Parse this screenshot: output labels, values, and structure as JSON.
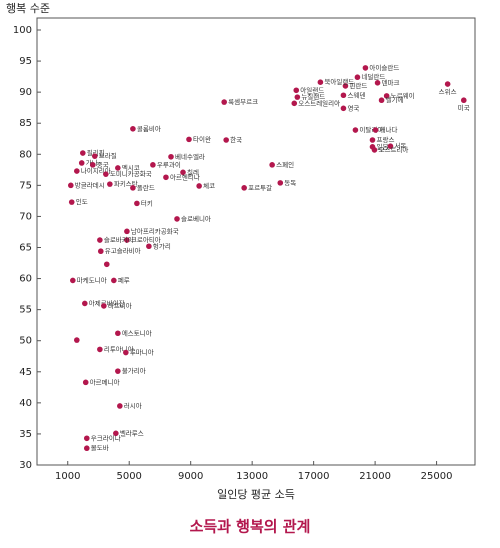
{
  "chart_data": {
    "type": "scatter",
    "title": "소득과 행복의 관계",
    "y_label": "행복 수준",
    "x_label": "일인당 평균 소득",
    "color": "#b3174d",
    "xlim": [
      -1000,
      27500
    ],
    "xticks": [
      1000,
      5000,
      9000,
      13000,
      17000,
      21000,
      25000
    ],
    "ylim": [
      30,
      100
    ],
    "yticks": [
      30,
      35,
      40,
      45,
      50,
      55,
      60,
      65,
      70,
      75,
      80,
      85,
      90,
      95,
      100
    ],
    "labels": [
      "스위스",
      "미국",
      "아이슬란드",
      "네덜란드",
      "덴마크",
      "노르웨이",
      "벨기에",
      "핀란드",
      "북아일랜드",
      "스웨덴",
      "아일랜드",
      "뉴질랜드",
      "오스트레일리아",
      "영국",
      "룩셈부르크",
      "이탈리아",
      "캐나다",
      "프랑스",
      "일본",
      "서독",
      "오스트리아",
      "스페인",
      "동독",
      "포르투갈",
      "한국",
      "타이완",
      "콜롬비아",
      "필리핀",
      "브라질",
      "가나",
      "중국",
      "나이지리아",
      "방글라데시",
      "인도",
      "파키스탄",
      "멕시코",
      "도미니카공화국",
      "우루과이",
      "베네수엘라",
      "칠레",
      "아르헨티나",
      "체코",
      "폴란드",
      "터키",
      "슬로베니아",
      "남아프리카공화국",
      "크로아티아",
      "헝가리",
      "유고슬라비아",
      "슬로바키아",
      null,
      "마케도니아",
      "페루",
      "아제르바이잔",
      "라트비아",
      "에스토니아",
      null,
      "리투아니아",
      "루마니아",
      "불가리아",
      "아르메니아",
      "러시아",
      "벨라루스",
      "우크라이나",
      "몰도바"
    ],
    "x": [
      25720,
      26770,
      20370,
      19850,
      21160,
      21750,
      21420,
      19070,
      17440,
      18940,
      15870,
      15940,
      15740,
      18940,
      11180,
      19720,
      21030,
      20830,
      20830,
      22000,
      20960,
      14300,
      14830,
      12480,
      11310,
      8890,
      5240,
      1980,
      2760,
      1910,
      2630,
      1590,
      1200,
      1260,
      3740,
      4260,
      3480,
      6540,
      7720,
      8500,
      7390,
      9550,
      5240,
      5500,
      8110,
      4850,
      4850,
      6280,
      3150,
      3090,
      3540,
      1330,
      4000,
      2110,
      3350,
      4260,
      1590,
      3090,
      4780,
      4260,
      2170,
      4390,
      4130,
      2240,
      2240
    ],
    "values": [
      91.3,
      88.7,
      93.9,
      92.4,
      91.5,
      89.4,
      88.7,
      91,
      91.6,
      89.5,
      90.3,
      89.2,
      88.2,
      87.4,
      88.4,
      83.9,
      83.9,
      82.3,
      81.2,
      81.3,
      80.7,
      78.3,
      75.4,
      74.6,
      82.3,
      82.4,
      84.1,
      80.2,
      79.7,
      78.6,
      78.3,
      77.3,
      75,
      72.3,
      75.2,
      77.8,
      76.8,
      78.3,
      79.6,
      77.1,
      76.3,
      74.9,
      74.6,
      72.1,
      69.6,
      67.6,
      66.2,
      65.2,
      64.4,
      66.2,
      62.3,
      59.7,
      59.7,
      56,
      55.6,
      51.2,
      50.1,
      48.6,
      48.1,
      45.1,
      43.3,
      39.5,
      35.1,
      34.3,
      32.7
    ]
  }
}
